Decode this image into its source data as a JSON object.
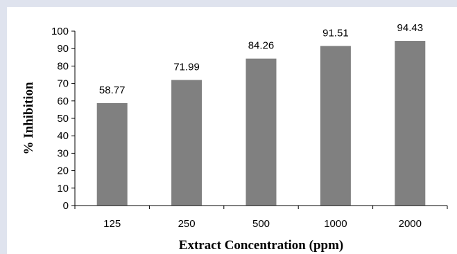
{
  "chart_data": {
    "type": "bar",
    "categories": [
      "125",
      "250",
      "500",
      "1000",
      "2000"
    ],
    "values": [
      58.77,
      71.99,
      84.26,
      91.51,
      94.43
    ],
    "data_labels": [
      "58.77",
      "71.99",
      "84.26",
      "91.51",
      "94.43"
    ],
    "title": "",
    "xlabel": "Extract Concentration (ppm)",
    "ylabel": "% Inhibition",
    "ylim": [
      0,
      100
    ],
    "yticks": [
      "0",
      "10",
      "20",
      "30",
      "40",
      "50",
      "60",
      "70",
      "80",
      "90",
      "100"
    ],
    "grid": false,
    "legend": "none",
    "bar_color": "#808080",
    "background_color": "#dfe3ee"
  }
}
